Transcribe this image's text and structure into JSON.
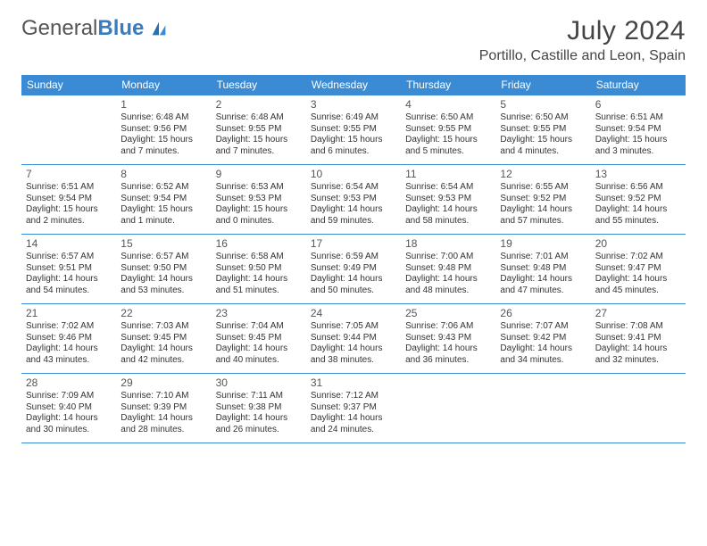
{
  "brand": {
    "general": "General",
    "blue": "Blue"
  },
  "title": "July 2024",
  "location": "Portillo, Castille and Leon, Spain",
  "colors": {
    "header_bg": "#3b8bd4",
    "header_text": "#ffffff",
    "border": "#3b8bd4",
    "text": "#333333",
    "brand_blue": "#3b7bbf"
  },
  "weekdays": [
    "Sunday",
    "Monday",
    "Tuesday",
    "Wednesday",
    "Thursday",
    "Friday",
    "Saturday"
  ],
  "weeks": [
    [
      null,
      {
        "n": "1",
        "sr": "Sunrise: 6:48 AM",
        "ss": "Sunset: 9:56 PM",
        "dl": "Daylight: 15 hours and 7 minutes."
      },
      {
        "n": "2",
        "sr": "Sunrise: 6:48 AM",
        "ss": "Sunset: 9:55 PM",
        "dl": "Daylight: 15 hours and 7 minutes."
      },
      {
        "n": "3",
        "sr": "Sunrise: 6:49 AM",
        "ss": "Sunset: 9:55 PM",
        "dl": "Daylight: 15 hours and 6 minutes."
      },
      {
        "n": "4",
        "sr": "Sunrise: 6:50 AM",
        "ss": "Sunset: 9:55 PM",
        "dl": "Daylight: 15 hours and 5 minutes."
      },
      {
        "n": "5",
        "sr": "Sunrise: 6:50 AM",
        "ss": "Sunset: 9:55 PM",
        "dl": "Daylight: 15 hours and 4 minutes."
      },
      {
        "n": "6",
        "sr": "Sunrise: 6:51 AM",
        "ss": "Sunset: 9:54 PM",
        "dl": "Daylight: 15 hours and 3 minutes."
      }
    ],
    [
      {
        "n": "7",
        "sr": "Sunrise: 6:51 AM",
        "ss": "Sunset: 9:54 PM",
        "dl": "Daylight: 15 hours and 2 minutes."
      },
      {
        "n": "8",
        "sr": "Sunrise: 6:52 AM",
        "ss": "Sunset: 9:54 PM",
        "dl": "Daylight: 15 hours and 1 minute."
      },
      {
        "n": "9",
        "sr": "Sunrise: 6:53 AM",
        "ss": "Sunset: 9:53 PM",
        "dl": "Daylight: 15 hours and 0 minutes."
      },
      {
        "n": "10",
        "sr": "Sunrise: 6:54 AM",
        "ss": "Sunset: 9:53 PM",
        "dl": "Daylight: 14 hours and 59 minutes."
      },
      {
        "n": "11",
        "sr": "Sunrise: 6:54 AM",
        "ss": "Sunset: 9:53 PM",
        "dl": "Daylight: 14 hours and 58 minutes."
      },
      {
        "n": "12",
        "sr": "Sunrise: 6:55 AM",
        "ss": "Sunset: 9:52 PM",
        "dl": "Daylight: 14 hours and 57 minutes."
      },
      {
        "n": "13",
        "sr": "Sunrise: 6:56 AM",
        "ss": "Sunset: 9:52 PM",
        "dl": "Daylight: 14 hours and 55 minutes."
      }
    ],
    [
      {
        "n": "14",
        "sr": "Sunrise: 6:57 AM",
        "ss": "Sunset: 9:51 PM",
        "dl": "Daylight: 14 hours and 54 minutes."
      },
      {
        "n": "15",
        "sr": "Sunrise: 6:57 AM",
        "ss": "Sunset: 9:50 PM",
        "dl": "Daylight: 14 hours and 53 minutes."
      },
      {
        "n": "16",
        "sr": "Sunrise: 6:58 AM",
        "ss": "Sunset: 9:50 PM",
        "dl": "Daylight: 14 hours and 51 minutes."
      },
      {
        "n": "17",
        "sr": "Sunrise: 6:59 AM",
        "ss": "Sunset: 9:49 PM",
        "dl": "Daylight: 14 hours and 50 minutes."
      },
      {
        "n": "18",
        "sr": "Sunrise: 7:00 AM",
        "ss": "Sunset: 9:48 PM",
        "dl": "Daylight: 14 hours and 48 minutes."
      },
      {
        "n": "19",
        "sr": "Sunrise: 7:01 AM",
        "ss": "Sunset: 9:48 PM",
        "dl": "Daylight: 14 hours and 47 minutes."
      },
      {
        "n": "20",
        "sr": "Sunrise: 7:02 AM",
        "ss": "Sunset: 9:47 PM",
        "dl": "Daylight: 14 hours and 45 minutes."
      }
    ],
    [
      {
        "n": "21",
        "sr": "Sunrise: 7:02 AM",
        "ss": "Sunset: 9:46 PM",
        "dl": "Daylight: 14 hours and 43 minutes."
      },
      {
        "n": "22",
        "sr": "Sunrise: 7:03 AM",
        "ss": "Sunset: 9:45 PM",
        "dl": "Daylight: 14 hours and 42 minutes."
      },
      {
        "n": "23",
        "sr": "Sunrise: 7:04 AM",
        "ss": "Sunset: 9:45 PM",
        "dl": "Daylight: 14 hours and 40 minutes."
      },
      {
        "n": "24",
        "sr": "Sunrise: 7:05 AM",
        "ss": "Sunset: 9:44 PM",
        "dl": "Daylight: 14 hours and 38 minutes."
      },
      {
        "n": "25",
        "sr": "Sunrise: 7:06 AM",
        "ss": "Sunset: 9:43 PM",
        "dl": "Daylight: 14 hours and 36 minutes."
      },
      {
        "n": "26",
        "sr": "Sunrise: 7:07 AM",
        "ss": "Sunset: 9:42 PM",
        "dl": "Daylight: 14 hours and 34 minutes."
      },
      {
        "n": "27",
        "sr": "Sunrise: 7:08 AM",
        "ss": "Sunset: 9:41 PM",
        "dl": "Daylight: 14 hours and 32 minutes."
      }
    ],
    [
      {
        "n": "28",
        "sr": "Sunrise: 7:09 AM",
        "ss": "Sunset: 9:40 PM",
        "dl": "Daylight: 14 hours and 30 minutes."
      },
      {
        "n": "29",
        "sr": "Sunrise: 7:10 AM",
        "ss": "Sunset: 9:39 PM",
        "dl": "Daylight: 14 hours and 28 minutes."
      },
      {
        "n": "30",
        "sr": "Sunrise: 7:11 AM",
        "ss": "Sunset: 9:38 PM",
        "dl": "Daylight: 14 hours and 26 minutes."
      },
      {
        "n": "31",
        "sr": "Sunrise: 7:12 AM",
        "ss": "Sunset: 9:37 PM",
        "dl": "Daylight: 14 hours and 24 minutes."
      },
      null,
      null,
      null
    ]
  ]
}
